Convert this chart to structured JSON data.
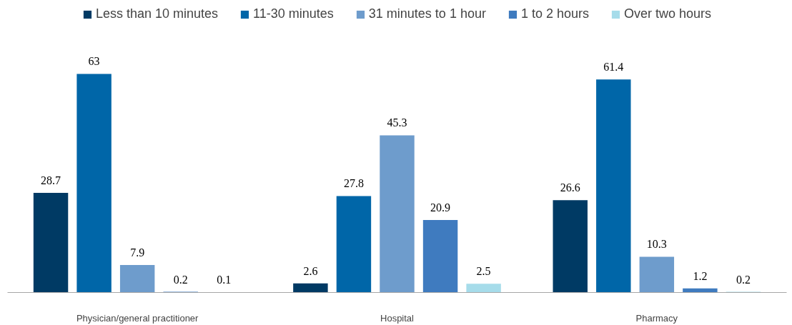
{
  "chart_data": {
    "type": "bar",
    "categories": [
      "Physician/general practitioner",
      "Hospital",
      "Pharmacy"
    ],
    "series": [
      {
        "name": "Less than 10 minutes",
        "color": "#003a64",
        "values": [
          28.7,
          2.6,
          26.6
        ]
      },
      {
        "name": "11-30 minutes",
        "color": "#0066a8",
        "values": [
          63,
          27.8,
          61.4
        ]
      },
      {
        "name": "31 minutes to 1 hour",
        "color": "#6e9ccc",
        "values": [
          7.9,
          45.3,
          10.3
        ]
      },
      {
        "name": "1 to 2 hours",
        "color": "#3f7bbf",
        "values": [
          0.2,
          20.9,
          1.2
        ]
      },
      {
        "name": "Over two hours",
        "color": "#a6dcea",
        "values": [
          0.1,
          2.5,
          0.2
        ]
      }
    ],
    "data_labels": true,
    "grid": false,
    "legend": "top"
  }
}
